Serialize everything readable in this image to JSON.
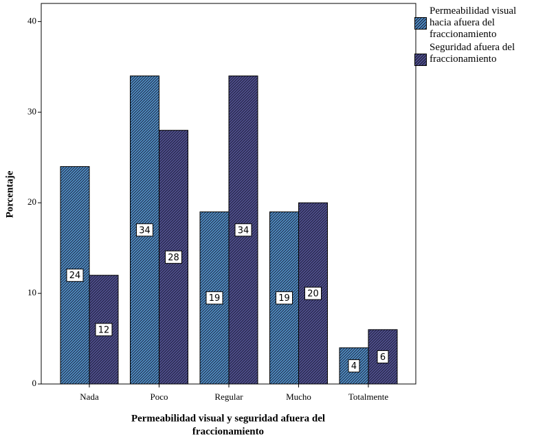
{
  "chart_data": {
    "type": "bar",
    "y_label": "Porcentaje",
    "x_label": [
      "Permeabilidad visual y seguridad afuera del",
      "fraccionamiento"
    ],
    "categories": [
      "Nada",
      "Poco",
      "Regular",
      "Mucho",
      "Totalmente"
    ],
    "series": [
      {
        "name": "Permeabilidad visual hacia afuera del fraccionamiento",
        "color": "#4f8fc4",
        "values": [
          24,
          34,
          19,
          19,
          4
        ]
      },
      {
        "name": "Seguridad afuera del fraccionamiento",
        "color": "#50508e",
        "values": [
          12,
          28,
          34,
          20,
          6
        ]
      }
    ],
    "ylim": [
      0,
      42
    ],
    "yticks": [
      0,
      10,
      20,
      30,
      40
    ]
  }
}
